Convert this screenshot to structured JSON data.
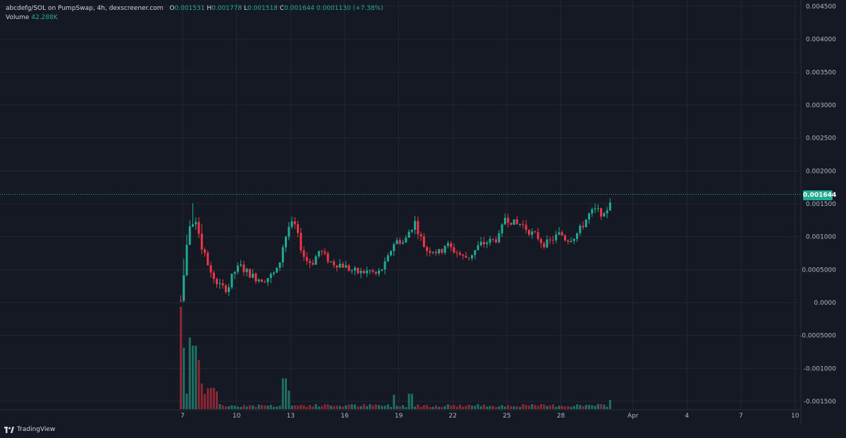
{
  "header": {
    "symbol_title": "abcdefg/SOL on PumpSwap, 4h, dexscreener.com",
    "o_key": "O",
    "o_val": "0.001531",
    "h_key": "H",
    "h_val": "0.001778",
    "l_key": "L",
    "l_val": "0.001518",
    "c_key": "C",
    "c_val": "0.001644",
    "change": "0.0001130 (+7.38%)",
    "volume_label": "Volume",
    "volume_value": "42.288K"
  },
  "last_price_label": "0.001644",
  "brand": "TradingView",
  "colors": {
    "background": "#151924",
    "grid": "#232734",
    "up": "#22ab94",
    "down": "#f23645",
    "up_volume": "#1f6f63",
    "down_volume": "#8e2733",
    "axis_text": "#b2b5be"
  },
  "chart_data": {
    "type": "candlestick",
    "interval": "4h",
    "last_price": 0.001644,
    "ylim": [
      -0.0016,
      0.0045
    ],
    "y_tick_labels": [
      "0.004500",
      "0.004000",
      "0.003500",
      "0.003000",
      "0.002500",
      "0.002000",
      "0.001500",
      "0.001000",
      "0.0005000",
      "0.0000",
      "-0.0005000",
      "-0.001000",
      "-0.001500"
    ],
    "y_tick_values": [
      0.0045,
      0.004,
      0.0035,
      0.003,
      0.0025,
      0.002,
      0.0015,
      0.001,
      0.0005,
      0.0,
      -0.0005,
      -0.001,
      -0.0015
    ],
    "x_tick_labels": [
      "7",
      "10",
      "13",
      "16",
      "19",
      "22",
      "25",
      "28",
      "Apr",
      "4",
      "7",
      "10"
    ],
    "x_tick_days": [
      7,
      10,
      13,
      16,
      19,
      22,
      25,
      28,
      32,
      35,
      38,
      41
    ],
    "price_path": [
      [
        6.9,
        3e-05
      ],
      [
        7.0,
        0.0003
      ],
      [
        7.2,
        0.0008
      ],
      [
        7.4,
        0.00115
      ],
      [
        7.6,
        0.00125
      ],
      [
        7.8,
        0.00118
      ],
      [
        8.0,
        0.0009
      ],
      [
        8.3,
        0.0007
      ],
      [
        8.6,
        0.0004
      ],
      [
        9.0,
        0.00028
      ],
      [
        9.3,
        0.0002
      ],
      [
        9.6,
        0.00025
      ],
      [
        9.8,
        0.00045
      ],
      [
        10.2,
        0.00055
      ],
      [
        10.5,
        0.00048
      ],
      [
        11.0,
        0.00038
      ],
      [
        11.5,
        0.00035
      ],
      [
        12.0,
        0.00042
      ],
      [
        12.3,
        0.0005
      ],
      [
        12.6,
        0.0009
      ],
      [
        12.9,
        0.00115
      ],
      [
        13.2,
        0.0012
      ],
      [
        13.5,
        0.0009
      ],
      [
        13.8,
        0.00065
      ],
      [
        14.2,
        0.0006
      ],
      [
        14.6,
        0.0008
      ],
      [
        14.9,
        0.0007
      ],
      [
        15.3,
        0.0006
      ],
      [
        15.8,
        0.00058
      ],
      [
        16.3,
        0.0005
      ],
      [
        16.8,
        0.00045
      ],
      [
        17.4,
        0.00048
      ],
      [
        17.8,
        0.00042
      ],
      [
        18.3,
        0.0006
      ],
      [
        18.7,
        0.0009
      ],
      [
        19.0,
        0.00095
      ],
      [
        19.3,
        0.0009
      ],
      [
        19.6,
        0.0011
      ],
      [
        19.9,
        0.00122
      ],
      [
        20.2,
        0.001
      ],
      [
        20.5,
        0.0008
      ],
      [
        20.9,
        0.0008
      ],
      [
        21.3,
        0.00075
      ],
      [
        21.6,
        0.0009
      ],
      [
        21.9,
        0.00082
      ],
      [
        22.3,
        0.00075
      ],
      [
        22.6,
        0.00068
      ],
      [
        22.9,
        0.0007
      ],
      [
        23.2,
        0.00078
      ],
      [
        23.5,
        0.00088
      ],
      [
        23.9,
        0.00092
      ],
      [
        24.3,
        0.00095
      ],
      [
        24.6,
        0.001
      ],
      [
        24.9,
        0.0013
      ],
      [
        25.2,
        0.00125
      ],
      [
        25.5,
        0.00118
      ],
      [
        25.8,
        0.0012
      ],
      [
        26.1,
        0.00112
      ],
      [
        26.4,
        0.00105
      ],
      [
        26.7,
        0.001
      ],
      [
        27.0,
        0.0009
      ],
      [
        27.3,
        0.0009
      ],
      [
        27.6,
        0.00098
      ],
      [
        28.0,
        0.00105
      ],
      [
        28.3,
        0.00095
      ],
      [
        28.7,
        0.001
      ],
      [
        29.0,
        0.00108
      ],
      [
        29.3,
        0.00122
      ],
      [
        29.6,
        0.00135
      ],
      [
        29.9,
        0.0014
      ],
      [
        30.2,
        0.00138
      ],
      [
        30.4,
        0.0013
      ],
      [
        30.7,
        0.00153
      ],
      [
        30.85,
        0.00164
      ]
    ],
    "volume_spikes": [
      [
        6.95,
        1.0
      ],
      [
        7.05,
        0.6
      ],
      [
        7.45,
        0.7
      ],
      [
        7.65,
        0.62
      ],
      [
        7.85,
        0.48
      ],
      [
        8.05,
        0.25
      ],
      [
        12.65,
        0.3
      ],
      [
        12.95,
        0.18
      ],
      [
        18.75,
        0.14
      ],
      [
        19.65,
        0.15
      ],
      [
        30.8,
        0.09
      ]
    ],
    "volume_note": "Volume histogram at bottom; bars colored by candle direction"
  }
}
